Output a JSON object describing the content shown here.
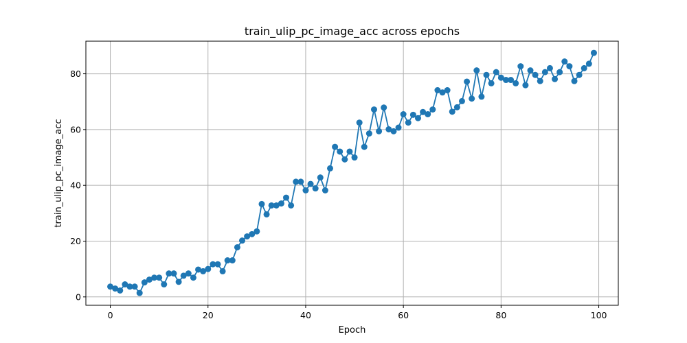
{
  "chart_data": {
    "type": "line",
    "title": "train_ulip_pc_image_acc across epochs",
    "xlabel": "Epoch",
    "ylabel": "train_ulip_pc_image_acc",
    "xlim": [
      -5,
      104
    ],
    "ylim": [
      -3,
      91.7
    ],
    "xticks": [
      0,
      20,
      40,
      60,
      80,
      100
    ],
    "yticks": [
      0,
      20,
      40,
      60,
      80
    ],
    "grid": true,
    "markers": true,
    "series": [
      {
        "color": "#1f77b4",
        "x": [
          0,
          1,
          2,
          3,
          4,
          5,
          6,
          7,
          8,
          9,
          10,
          11,
          12,
          13,
          14,
          15,
          16,
          17,
          18,
          19,
          20,
          21,
          22,
          23,
          24,
          25,
          26,
          27,
          28,
          29,
          30,
          31,
          32,
          33,
          34,
          35,
          36,
          37,
          38,
          39,
          40,
          41,
          42,
          43,
          44,
          45,
          46,
          47,
          48,
          49,
          50,
          51,
          52,
          53,
          54,
          55,
          56,
          57,
          58,
          59,
          60,
          61,
          62,
          63,
          64,
          65,
          66,
          67,
          68,
          69,
          70,
          71,
          72,
          73,
          74,
          75,
          76,
          77,
          78,
          79,
          80,
          81,
          82,
          83,
          84,
          85,
          86,
          87,
          88,
          89,
          90,
          91,
          92,
          93,
          94,
          95,
          96,
          97,
          98,
          99
        ],
        "values": [
          3.7,
          3.0,
          2.3,
          4.5,
          3.7,
          3.7,
          1.4,
          5.2,
          6.2,
          6.9,
          6.9,
          4.5,
          8.4,
          8.4,
          5.4,
          7.6,
          8.4,
          6.9,
          9.8,
          9.2,
          10.0,
          11.7,
          11.7,
          9.2,
          13.1,
          13.1,
          17.8,
          20.2,
          21.7,
          22.5,
          23.5,
          33.3,
          29.6,
          32.8,
          32.8,
          33.5,
          35.6,
          32.8,
          41.3,
          41.3,
          38.2,
          40.5,
          38.9,
          42.8,
          38.2,
          46.1,
          53.8,
          52.1,
          49.3,
          52.1,
          50.0,
          62.5,
          53.8,
          58.6,
          67.2,
          59.4,
          67.9,
          60.1,
          59.4,
          60.7,
          65.5,
          62.5,
          65.3,
          64.1,
          66.3,
          65.5,
          67.2,
          74.1,
          73.3,
          74.1,
          66.4,
          68.0,
          70.2,
          77.2,
          71.1,
          81.2,
          71.8,
          79.6,
          76.6,
          80.6,
          78.6,
          77.8,
          77.8,
          76.6,
          82.7,
          75.9,
          81.2,
          79.6,
          77.4,
          80.6,
          82.0,
          78.1,
          80.6,
          84.4,
          82.7,
          77.4,
          79.6,
          82.0,
          83.6,
          87.5
        ]
      }
    ]
  }
}
